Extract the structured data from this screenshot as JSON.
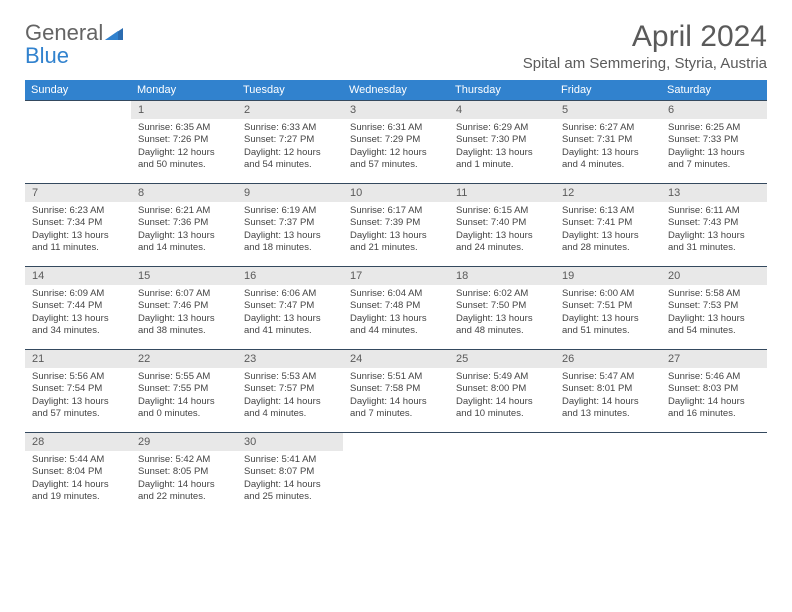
{
  "logo": {
    "part1": "General",
    "part2": "Blue"
  },
  "title": "April 2024",
  "location": "Spital am Semmering, Styria, Austria",
  "colors": {
    "header_bg": "#3182ce",
    "header_text": "#ffffff",
    "daynum_bg": "#e8e8e8",
    "border": "#34495e",
    "text": "#444444",
    "title_text": "#5a5a5a"
  },
  "day_headers": [
    "Sunday",
    "Monday",
    "Tuesday",
    "Wednesday",
    "Thursday",
    "Friday",
    "Saturday"
  ],
  "weeks": [
    [
      null,
      {
        "n": "1",
        "sunrise": "6:35 AM",
        "sunset": "7:26 PM",
        "daylight": "12 hours and 50 minutes."
      },
      {
        "n": "2",
        "sunrise": "6:33 AM",
        "sunset": "7:27 PM",
        "daylight": "12 hours and 54 minutes."
      },
      {
        "n": "3",
        "sunrise": "6:31 AM",
        "sunset": "7:29 PM",
        "daylight": "12 hours and 57 minutes."
      },
      {
        "n": "4",
        "sunrise": "6:29 AM",
        "sunset": "7:30 PM",
        "daylight": "13 hours and 1 minute."
      },
      {
        "n": "5",
        "sunrise": "6:27 AM",
        "sunset": "7:31 PM",
        "daylight": "13 hours and 4 minutes."
      },
      {
        "n": "6",
        "sunrise": "6:25 AM",
        "sunset": "7:33 PM",
        "daylight": "13 hours and 7 minutes."
      }
    ],
    [
      {
        "n": "7",
        "sunrise": "6:23 AM",
        "sunset": "7:34 PM",
        "daylight": "13 hours and 11 minutes."
      },
      {
        "n": "8",
        "sunrise": "6:21 AM",
        "sunset": "7:36 PM",
        "daylight": "13 hours and 14 minutes."
      },
      {
        "n": "9",
        "sunrise": "6:19 AM",
        "sunset": "7:37 PM",
        "daylight": "13 hours and 18 minutes."
      },
      {
        "n": "10",
        "sunrise": "6:17 AM",
        "sunset": "7:39 PM",
        "daylight": "13 hours and 21 minutes."
      },
      {
        "n": "11",
        "sunrise": "6:15 AM",
        "sunset": "7:40 PM",
        "daylight": "13 hours and 24 minutes."
      },
      {
        "n": "12",
        "sunrise": "6:13 AM",
        "sunset": "7:41 PM",
        "daylight": "13 hours and 28 minutes."
      },
      {
        "n": "13",
        "sunrise": "6:11 AM",
        "sunset": "7:43 PM",
        "daylight": "13 hours and 31 minutes."
      }
    ],
    [
      {
        "n": "14",
        "sunrise": "6:09 AM",
        "sunset": "7:44 PM",
        "daylight": "13 hours and 34 minutes."
      },
      {
        "n": "15",
        "sunrise": "6:07 AM",
        "sunset": "7:46 PM",
        "daylight": "13 hours and 38 minutes."
      },
      {
        "n": "16",
        "sunrise": "6:06 AM",
        "sunset": "7:47 PM",
        "daylight": "13 hours and 41 minutes."
      },
      {
        "n": "17",
        "sunrise": "6:04 AM",
        "sunset": "7:48 PM",
        "daylight": "13 hours and 44 minutes."
      },
      {
        "n": "18",
        "sunrise": "6:02 AM",
        "sunset": "7:50 PM",
        "daylight": "13 hours and 48 minutes."
      },
      {
        "n": "19",
        "sunrise": "6:00 AM",
        "sunset": "7:51 PM",
        "daylight": "13 hours and 51 minutes."
      },
      {
        "n": "20",
        "sunrise": "5:58 AM",
        "sunset": "7:53 PM",
        "daylight": "13 hours and 54 minutes."
      }
    ],
    [
      {
        "n": "21",
        "sunrise": "5:56 AM",
        "sunset": "7:54 PM",
        "daylight": "13 hours and 57 minutes."
      },
      {
        "n": "22",
        "sunrise": "5:55 AM",
        "sunset": "7:55 PM",
        "daylight": "14 hours and 0 minutes."
      },
      {
        "n": "23",
        "sunrise": "5:53 AM",
        "sunset": "7:57 PM",
        "daylight": "14 hours and 4 minutes."
      },
      {
        "n": "24",
        "sunrise": "5:51 AM",
        "sunset": "7:58 PM",
        "daylight": "14 hours and 7 minutes."
      },
      {
        "n": "25",
        "sunrise": "5:49 AM",
        "sunset": "8:00 PM",
        "daylight": "14 hours and 10 minutes."
      },
      {
        "n": "26",
        "sunrise": "5:47 AM",
        "sunset": "8:01 PM",
        "daylight": "14 hours and 13 minutes."
      },
      {
        "n": "27",
        "sunrise": "5:46 AM",
        "sunset": "8:03 PM",
        "daylight": "14 hours and 16 minutes."
      }
    ],
    [
      {
        "n": "28",
        "sunrise": "5:44 AM",
        "sunset": "8:04 PM",
        "daylight": "14 hours and 19 minutes."
      },
      {
        "n": "29",
        "sunrise": "5:42 AM",
        "sunset": "8:05 PM",
        "daylight": "14 hours and 22 minutes."
      },
      {
        "n": "30",
        "sunrise": "5:41 AM",
        "sunset": "8:07 PM",
        "daylight": "14 hours and 25 minutes."
      },
      null,
      null,
      null,
      null
    ]
  ]
}
